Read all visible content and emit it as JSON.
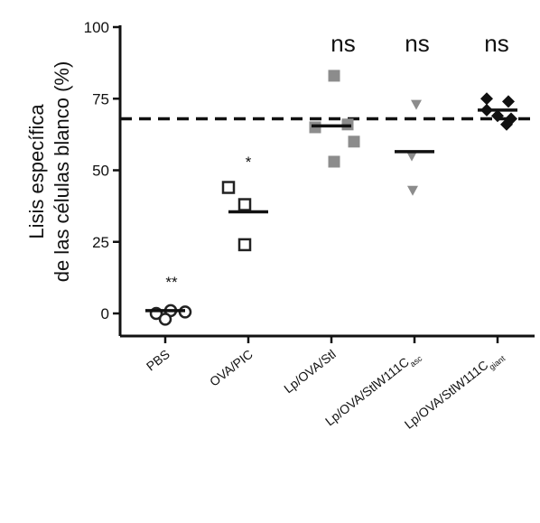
{
  "chart_data": {
    "type": "scatter",
    "ylabel_lines": [
      "Lisis específica",
      "de las células blanco (%)"
    ],
    "ylim": [
      0,
      100
    ],
    "yticks": [
      "0",
      "25",
      "50",
      "75",
      "100"
    ],
    "ytick_values": [
      0,
      25,
      50,
      75,
      100
    ],
    "categories": [
      {
        "label": "PBS",
        "sub": ""
      },
      {
        "label": "OVA/PIC",
        "sub": ""
      },
      {
        "label": "Lp/OVA/Stl",
        "sub": ""
      },
      {
        "label": "Lp/OVA/StlW111C",
        "sub": "asc"
      },
      {
        "label": "Lp/OVA/StlW111C",
        "sub": "giant"
      }
    ],
    "reference_line": 68,
    "annotations": [
      "**",
      "*",
      "ns",
      "ns",
      "ns"
    ],
    "series": [
      {
        "marker": "open-circle",
        "color": "#222222",
        "points": [
          0,
          1,
          0.5,
          -2
        ],
        "mean": 1
      },
      {
        "marker": "open-square",
        "color": "#222222",
        "points": [
          44,
          38,
          24
        ],
        "mean": 35.5
      },
      {
        "marker": "filled-square",
        "color": "#8c8c8c",
        "points": [
          83,
          65,
          66,
          60,
          53
        ],
        "mean": 65.5
      },
      {
        "marker": "filled-triangle-down",
        "color": "#8c8c8c",
        "points": [
          73,
          55,
          43
        ],
        "mean": 56.5
      },
      {
        "marker": "filled-diamond",
        "color": "#111111",
        "points": [
          75,
          74,
          71,
          69,
          68,
          66
        ],
        "mean": 71
      }
    ]
  }
}
